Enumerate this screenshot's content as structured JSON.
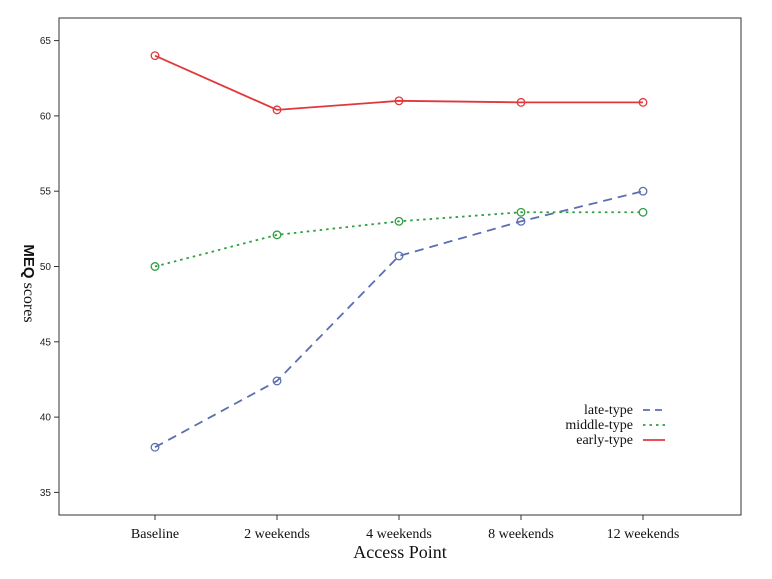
{
  "chart_data": {
    "type": "line",
    "categories": [
      "Baseline",
      "2 weekends",
      "4 weekends",
      "8 weekends",
      "12 weekends"
    ],
    "xlabel": "Access Point",
    "ylabel_bold": "MEQ",
    "ylabel_rest": " scores",
    "ylim": [
      33.5,
      66.5
    ],
    "yticks": [
      35,
      40,
      45,
      50,
      55,
      60,
      65
    ],
    "grid": false,
    "legend_position": "bottom-right",
    "series": [
      {
        "name": "late-type",
        "values": [
          38.0,
          42.4,
          50.7,
          53.0,
          55.0
        ],
        "color": "#5b6fb0",
        "dash": "dashed"
      },
      {
        "name": "middle-type",
        "values": [
          50.0,
          52.1,
          53.0,
          53.6,
          53.6
        ],
        "color": "#2e9e40",
        "dash": "dotted"
      },
      {
        "name": "early-type",
        "values": [
          64.0,
          60.4,
          61.0,
          60.9,
          60.9
        ],
        "color": "#e0383b",
        "dash": "solid"
      }
    ]
  }
}
